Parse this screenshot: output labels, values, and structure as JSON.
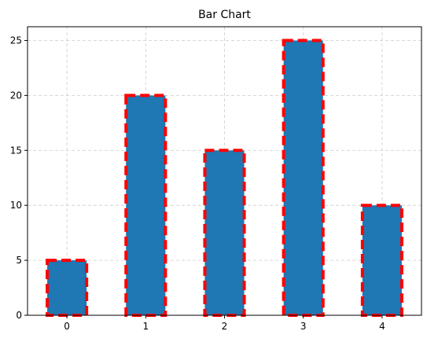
{
  "chart_data": {
    "type": "bar",
    "title": "Bar Chart",
    "categories": [
      "0",
      "1",
      "2",
      "3",
      "4"
    ],
    "values": [
      5,
      20,
      15,
      25,
      10
    ],
    "xlabel": "",
    "ylabel": "",
    "ylim": [
      0,
      26.25
    ],
    "yticks": [
      "0",
      "5",
      "10",
      "15",
      "20",
      "25"
    ],
    "grid": true,
    "colors": {
      "bar_fill": "#1f77b4",
      "bar_edge": "#ff0000",
      "grid": "#cccccc",
      "axis": "#000000"
    }
  }
}
